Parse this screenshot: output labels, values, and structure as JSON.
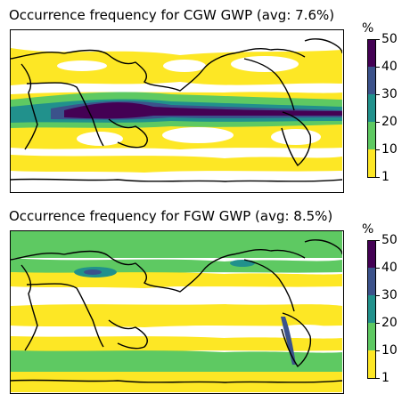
{
  "panels": [
    {
      "id": "cgw",
      "title": "Occurrence frequency for CGW GWP (avg: 7.6%)",
      "colorbar": {
        "unit": "%",
        "ticks": [
          "50",
          "40",
          "30",
          "20",
          "10",
          "1"
        ]
      }
    },
    {
      "id": "fgw",
      "title": "Occurrence frequency for FGW GWP (avg: 8.5%)",
      "colorbar": {
        "unit": "%",
        "ticks": [
          "50",
          "40",
          "30",
          "20",
          "10",
          "1"
        ]
      }
    }
  ],
  "colors": {
    "level_1_10": "#fde725",
    "level_10_20": "#5ec962",
    "level_20_30": "#21918c",
    "level_30_40": "#3b528b",
    "level_40_50": "#440154",
    "coastline": "#000000",
    "background": "#ffffff"
  }
}
